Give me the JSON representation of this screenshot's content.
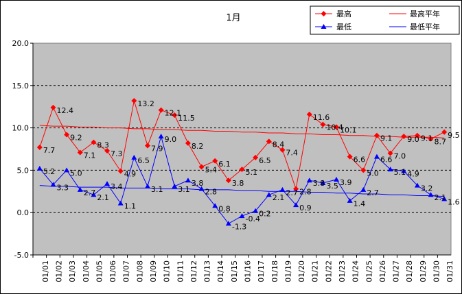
{
  "chart_data": {
    "type": "line",
    "title": "1月",
    "xlabel": "",
    "ylabel": "",
    "ylim": [
      -5.0,
      20.0
    ],
    "yticks": [
      "20.0",
      "15.0",
      "10.0",
      "5.0",
      "0.0",
      "-5.0"
    ],
    "grid": "horizontal-dashed",
    "legend_position": "top-right",
    "plot_background": "#c0c0c0",
    "categories": [
      "01/01",
      "01/02",
      "01/03",
      "01/04",
      "01/05",
      "01/06",
      "01/07",
      "01/08",
      "01/09",
      "01/10",
      "01/11",
      "01/12",
      "01/13",
      "01/14",
      "01/15",
      "01/16",
      "01/17",
      "01/18",
      "01/19",
      "01/20",
      "01/21",
      "01/22",
      "01/23",
      "01/24",
      "01/25",
      "01/26",
      "01/27",
      "01/28",
      "01/29",
      "01/30",
      "01/31"
    ],
    "series": [
      {
        "name": "最高",
        "color": "#ff0000",
        "marker": "diamond",
        "values": [
          7.7,
          12.4,
          9.2,
          7.1,
          8.3,
          7.3,
          4.9,
          13.2,
          7.9,
          12.1,
          11.5,
          8.2,
          5.4,
          6.1,
          3.8,
          5.1,
          6.5,
          8.4,
          7.4,
          2.8,
          11.6,
          10.4,
          10.1,
          6.6,
          5.0,
          9.1,
          7.0,
          9.0,
          9.1,
          8.7,
          9.5
        ],
        "labels": [
          "7.7",
          "12.4",
          "9.2",
          "7.1",
          "8.3",
          "7.3",
          "4.9",
          "13.2",
          "7.9",
          "12.1",
          "11.5",
          "8.2",
          "5.4",
          "6.1",
          "3.8",
          "5.1",
          "6.5",
          "8.4",
          "7.4",
          "2.8",
          "11.6",
          "10.4",
          "10.1",
          "6.6",
          "5.0",
          "9.1",
          "7.0",
          "9.0",
          "9.1",
          "8.7",
          "9.5"
        ]
      },
      {
        "name": "最低",
        "color": "#0000ff",
        "marker": "triangle",
        "values": [
          5.2,
          3.3,
          5.0,
          2.7,
          2.1,
          3.4,
          1.1,
          6.5,
          3.1,
          9.0,
          3.1,
          3.8,
          2.8,
          0.8,
          -1.3,
          -0.4,
          0.2,
          2.1,
          2.7,
          0.9,
          3.8,
          3.5,
          3.9,
          1.4,
          2.7,
          6.6,
          5.1,
          4.9,
          3.2,
          2.1,
          1.6
        ],
        "labels": [
          "5.2",
          "3.3",
          "5.0",
          "2.7",
          "2.1",
          "3.4",
          "1.1",
          "6.5",
          "3.1",
          "9.0",
          "3.1",
          "3.8",
          "2.8",
          "0.8",
          "-1.3",
          "-0.4",
          "0.2",
          "2.1",
          "2.7",
          "0.9",
          "3.8",
          "3.5",
          "3.9",
          "1.4",
          "2.7",
          "6.6",
          "5.1",
          "4.9",
          "3.2",
          "2.1",
          "1.6"
        ]
      },
      {
        "name": "最高平年",
        "color": "#ff0000",
        "marker": "none",
        "values": [
          10.3,
          10.2,
          10.2,
          10.1,
          10.1,
          10.0,
          10.0,
          9.9,
          9.9,
          9.8,
          9.8,
          9.7,
          9.7,
          9.6,
          9.6,
          9.5,
          9.5,
          9.4,
          9.4,
          9.3,
          9.3,
          9.2,
          9.2,
          9.1,
          9.1,
          9.0,
          9.0,
          8.9,
          8.9,
          8.9,
          8.8
        ]
      },
      {
        "name": "最低平年",
        "color": "#0000ff",
        "marker": "none",
        "values": [
          3.2,
          3.1,
          3.1,
          3.0,
          3.0,
          3.0,
          2.9,
          2.9,
          2.9,
          2.8,
          2.8,
          2.8,
          2.7,
          2.7,
          2.7,
          2.6,
          2.6,
          2.5,
          2.5,
          2.5,
          2.4,
          2.4,
          2.3,
          2.3,
          2.2,
          2.2,
          2.1,
          2.1,
          2.0,
          2.0,
          1.9
        ]
      }
    ]
  }
}
